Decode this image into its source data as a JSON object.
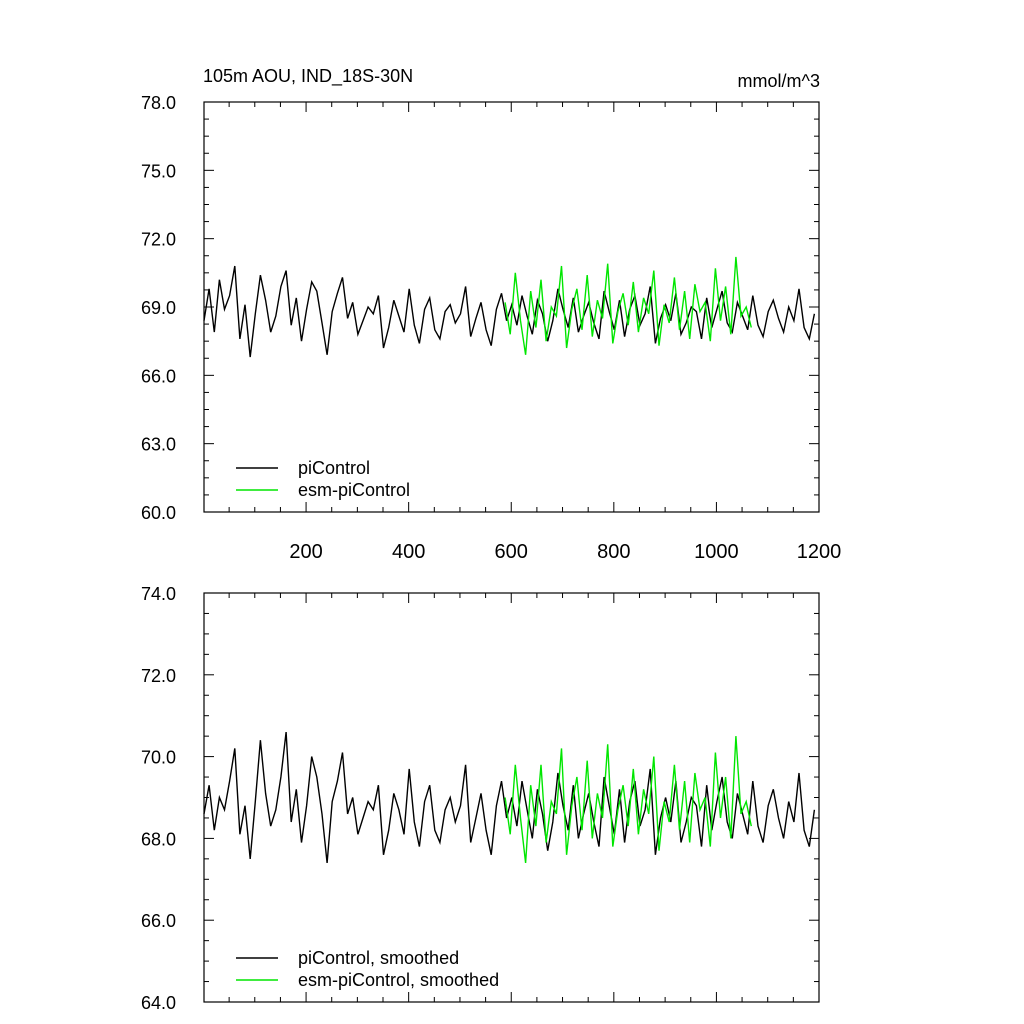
{
  "figure": {
    "title_left": "105m AOU, IND_18S-30N",
    "title_right": "mmol/m^3"
  },
  "colors": {
    "piControl": "#000000",
    "esm_piControl": "#00e600",
    "axes": "#000000",
    "background": "#ffffff"
  },
  "chart_data": [
    {
      "type": "line",
      "panel": "top",
      "title": "105m AOU, IND_18S-30N",
      "units": "mmol/m^3",
      "xlim": [
        1,
        1200
      ],
      "ylim": [
        60.0,
        78.0
      ],
      "x_ticks": [
        200,
        400,
        600,
        800,
        1000,
        1200
      ],
      "x_tick_labels": [
        "200",
        "400",
        "600",
        "800",
        "1000",
        "1200"
      ],
      "y_ticks": [
        60.0,
        63.0,
        66.0,
        69.0,
        72.0,
        75.0,
        78.0
      ],
      "y_tick_labels": [
        "60.0",
        "63.0",
        "66.0",
        "69.0",
        "72.0",
        "75.0",
        "78.0"
      ],
      "grid": false,
      "legend_position": "bottom-left",
      "series": [
        {
          "name": "piControl",
          "x_range": [
            1,
            1200
          ],
          "step": 10,
          "values": [
            68.4,
            69.8,
            67.9,
            70.2,
            68.9,
            69.5,
            70.8,
            67.6,
            69.1,
            66.8,
            68.7,
            70.4,
            69.3,
            67.9,
            68.6,
            69.9,
            70.6,
            68.2,
            69.4,
            67.5,
            68.9,
            70.1,
            69.7,
            68.3,
            66.9,
            68.8,
            69.6,
            70.3,
            68.5,
            69.2,
            67.8,
            68.4,
            69.0,
            68.7,
            69.5,
            67.2,
            68.1,
            69.3,
            68.6,
            67.9,
            69.8,
            68.2,
            67.4,
            68.9,
            69.4,
            68.0,
            67.6,
            68.8,
            69.1,
            68.3,
            68.7,
            69.9,
            67.7,
            68.5,
            69.2,
            68.0,
            67.3,
            68.9,
            69.6,
            68.4,
            69.1,
            68.2,
            69.5,
            68.6,
            67.8,
            69.3,
            68.7,
            67.5,
            68.4,
            69.8,
            68.9,
            68.1,
            69.4,
            67.9,
            68.6,
            69.2,
            68.3,
            67.6,
            69.7,
            68.8,
            68.0,
            69.3,
            67.7,
            68.9,
            69.5,
            68.2,
            68.7,
            69.9,
            67.4,
            68.5,
            69.1,
            68.4,
            69.6,
            67.8,
            68.3,
            69.0,
            68.8,
            67.6,
            69.4,
            68.1,
            68.9,
            69.7,
            68.3,
            67.9,
            69.2,
            68.6,
            68.0,
            69.5,
            68.2,
            67.7,
            68.8,
            69.3,
            68.5,
            67.9,
            69.0,
            68.4,
            69.8,
            68.1,
            67.6,
            68.7
          ]
        },
        {
          "name": "esm-piControl",
          "x_range": [
            588,
            1072
          ],
          "step": 10,
          "values": [
            69.2,
            67.8,
            70.5,
            68.4,
            66.9,
            69.7,
            68.1,
            70.2,
            67.5,
            69.0,
            68.6,
            70.8,
            67.2,
            68.9,
            69.8,
            68.0,
            70.4,
            67.7,
            69.3,
            68.5,
            70.9,
            67.4,
            68.8,
            69.6,
            68.2,
            70.1,
            67.9,
            69.4,
            68.7,
            70.6,
            67.3,
            69.1,
            68.3,
            70.3,
            68.0,
            69.7,
            67.6,
            70.0,
            68.8,
            69.2,
            67.5,
            70.7,
            68.4,
            69.9,
            67.8,
            71.2,
            68.6,
            69.0,
            68.1
          ]
        }
      ],
      "legend": [
        {
          "label": "piControl",
          "color": "#000000"
        },
        {
          "label": "esm-piControl",
          "color": "#00e600"
        }
      ]
    },
    {
      "type": "line",
      "panel": "bottom",
      "xlim": [
        1,
        1200
      ],
      "ylim": [
        64.0,
        74.0
      ],
      "y_ticks": [
        64.0,
        66.0,
        68.0,
        70.0,
        72.0,
        74.0
      ],
      "y_tick_labels": [
        "64.0",
        "66.0",
        "68.0",
        "70.0",
        "72.0",
        "74.0"
      ],
      "grid": false,
      "legend_position": "bottom-left",
      "series": [
        {
          "name": "piControl, smoothed",
          "x_range": [
            1,
            1200
          ],
          "step": 10,
          "values": [
            68.6,
            69.3,
            68.2,
            69.0,
            68.7,
            69.4,
            70.2,
            68.1,
            68.8,
            67.5,
            68.9,
            70.4,
            69.1,
            68.3,
            68.7,
            69.5,
            70.6,
            68.4,
            69.2,
            67.9,
            68.8,
            70.0,
            69.5,
            68.6,
            67.4,
            68.9,
            69.4,
            70.1,
            68.6,
            69.0,
            68.1,
            68.5,
            68.9,
            68.7,
            69.3,
            67.6,
            68.2,
            69.1,
            68.7,
            68.1,
            69.7,
            68.4,
            67.8,
            68.9,
            69.3,
            68.2,
            67.9,
            68.7,
            69.0,
            68.4,
            68.8,
            69.8,
            67.9,
            68.5,
            69.1,
            68.2,
            67.6,
            68.8,
            69.4,
            68.5,
            69.0,
            68.3,
            69.4,
            68.7,
            68.0,
            69.2,
            68.6,
            67.7,
            68.4,
            69.6,
            68.8,
            68.2,
            69.3,
            68.0,
            68.6,
            69.1,
            68.4,
            67.8,
            69.5,
            68.8,
            68.1,
            69.2,
            67.9,
            68.9,
            69.4,
            68.3,
            68.7,
            69.7,
            67.6,
            68.5,
            69.0,
            68.4,
            69.4,
            67.9,
            68.4,
            69.0,
            68.8,
            67.8,
            69.3,
            68.2,
            68.9,
            69.5,
            68.4,
            68.0,
            69.1,
            68.6,
            68.1,
            69.4,
            68.3,
            67.9,
            68.8,
            69.2,
            68.5,
            68.0,
            68.9,
            68.4,
            69.6,
            68.2,
            67.8,
            68.7
          ]
        },
        {
          "name": "esm-piControl, smoothed",
          "x_range": [
            588,
            1072
          ],
          "step": 10,
          "values": [
            69.0,
            68.1,
            69.8,
            68.5,
            67.4,
            69.3,
            68.3,
            69.8,
            67.9,
            68.9,
            68.6,
            70.2,
            67.6,
            68.8,
            69.5,
            68.2,
            69.9,
            68.0,
            69.1,
            68.5,
            70.3,
            67.8,
            68.7,
            69.3,
            68.3,
            69.7,
            68.1,
            69.2,
            68.6,
            70.0,
            67.7,
            68.9,
            68.4,
            69.8,
            68.2,
            69.4,
            67.9,
            69.6,
            68.7,
            69.0,
            67.8,
            70.1,
            68.5,
            69.5,
            68.0,
            70.5,
            68.6,
            68.9,
            68.3
          ]
        }
      ],
      "legend": [
        {
          "label": "piControl, smoothed",
          "color": "#000000"
        },
        {
          "label": "esm-piControl, smoothed",
          "color": "#00e600"
        }
      ]
    }
  ]
}
